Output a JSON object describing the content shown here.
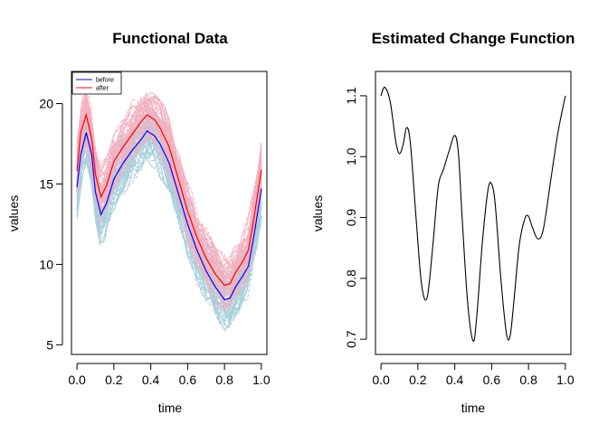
{
  "chart_data": [
    {
      "type": "line",
      "title": "Functional Data",
      "xlabel": "time",
      "ylabel": "values",
      "xlim": [
        -0.03,
        1.03
      ],
      "ylim": [
        4.4,
        22.0
      ],
      "xticks": [
        "0.0",
        "0.2",
        "0.4",
        "0.6",
        "0.8",
        "1.0"
      ],
      "yticks": [
        "5",
        "10",
        "15",
        "20"
      ],
      "legend": {
        "placement": "top-left",
        "entries": [
          "before",
          "after"
        ]
      },
      "colors": {
        "before": "#0000ff",
        "after": "#ff0000",
        "before_samples": "#a8d0dc",
        "after_samples": "#f4b0bf"
      },
      "series": [
        {
          "name": "before",
          "x": [
            0.0,
            0.02,
            0.05,
            0.08,
            0.1,
            0.13,
            0.16,
            0.2,
            0.25,
            0.3,
            0.35,
            0.38,
            0.42,
            0.45,
            0.5,
            0.55,
            0.6,
            0.65,
            0.7,
            0.75,
            0.8,
            0.83,
            0.86,
            0.9,
            0.93,
            0.96,
            1.0
          ],
          "values": [
            14.8,
            16.8,
            18.2,
            16.8,
            14.5,
            13.1,
            13.8,
            15.3,
            16.3,
            17.1,
            17.8,
            18.3,
            18.0,
            17.5,
            16.3,
            14.4,
            12.5,
            10.9,
            9.6,
            8.6,
            7.8,
            7.9,
            8.6,
            9.3,
            9.9,
            11.8,
            14.7
          ]
        },
        {
          "name": "after",
          "x": [
            0.0,
            0.02,
            0.05,
            0.08,
            0.1,
            0.13,
            0.16,
            0.2,
            0.25,
            0.3,
            0.35,
            0.38,
            0.42,
            0.45,
            0.5,
            0.55,
            0.6,
            0.65,
            0.7,
            0.75,
            0.8,
            0.83,
            0.86,
            0.9,
            0.93,
            0.96,
            1.0
          ],
          "values": [
            15.8,
            18.2,
            19.3,
            17.8,
            15.6,
            14.2,
            14.9,
            16.4,
            17.3,
            18.1,
            18.9,
            19.3,
            19.0,
            18.5,
            17.3,
            15.3,
            13.3,
            11.7,
            10.4,
            9.4,
            8.7,
            8.8,
            9.5,
            10.2,
            10.9,
            12.9,
            15.9
          ]
        }
      ]
    },
    {
      "type": "line",
      "title": "Estimated Change Function",
      "xlabel": "time",
      "ylabel": "values",
      "xlim": [
        -0.03,
        1.03
      ],
      "ylim": [
        0.675,
        1.14
      ],
      "xticks": [
        "0.0",
        "0.2",
        "0.4",
        "0.6",
        "0.8",
        "1.0"
      ],
      "yticks": [
        "0.7",
        "0.8",
        "0.9",
        "1.0",
        "1.1"
      ],
      "series": [
        {
          "x": [
            0.0,
            0.02,
            0.05,
            0.08,
            0.1,
            0.12,
            0.14,
            0.16,
            0.19,
            0.22,
            0.25,
            0.28,
            0.31,
            0.34,
            0.37,
            0.4,
            0.42,
            0.44,
            0.47,
            0.5,
            0.52,
            0.55,
            0.58,
            0.6,
            0.62,
            0.65,
            0.68,
            0.7,
            0.72,
            0.75,
            0.78,
            0.8,
            0.82,
            0.85,
            0.88,
            0.92,
            0.96,
            1.0
          ],
          "values": [
            1.1,
            1.114,
            1.09,
            1.025,
            1.005,
            1.02,
            1.048,
            1.02,
            0.9,
            0.79,
            0.768,
            0.85,
            0.95,
            0.98,
            1.01,
            1.035,
            1.005,
            0.9,
            0.76,
            0.697,
            0.74,
            0.86,
            0.945,
            0.955,
            0.92,
            0.8,
            0.71,
            0.705,
            0.76,
            0.855,
            0.898,
            0.902,
            0.885,
            0.865,
            0.88,
            0.96,
            1.04,
            1.1
          ]
        }
      ]
    }
  ]
}
